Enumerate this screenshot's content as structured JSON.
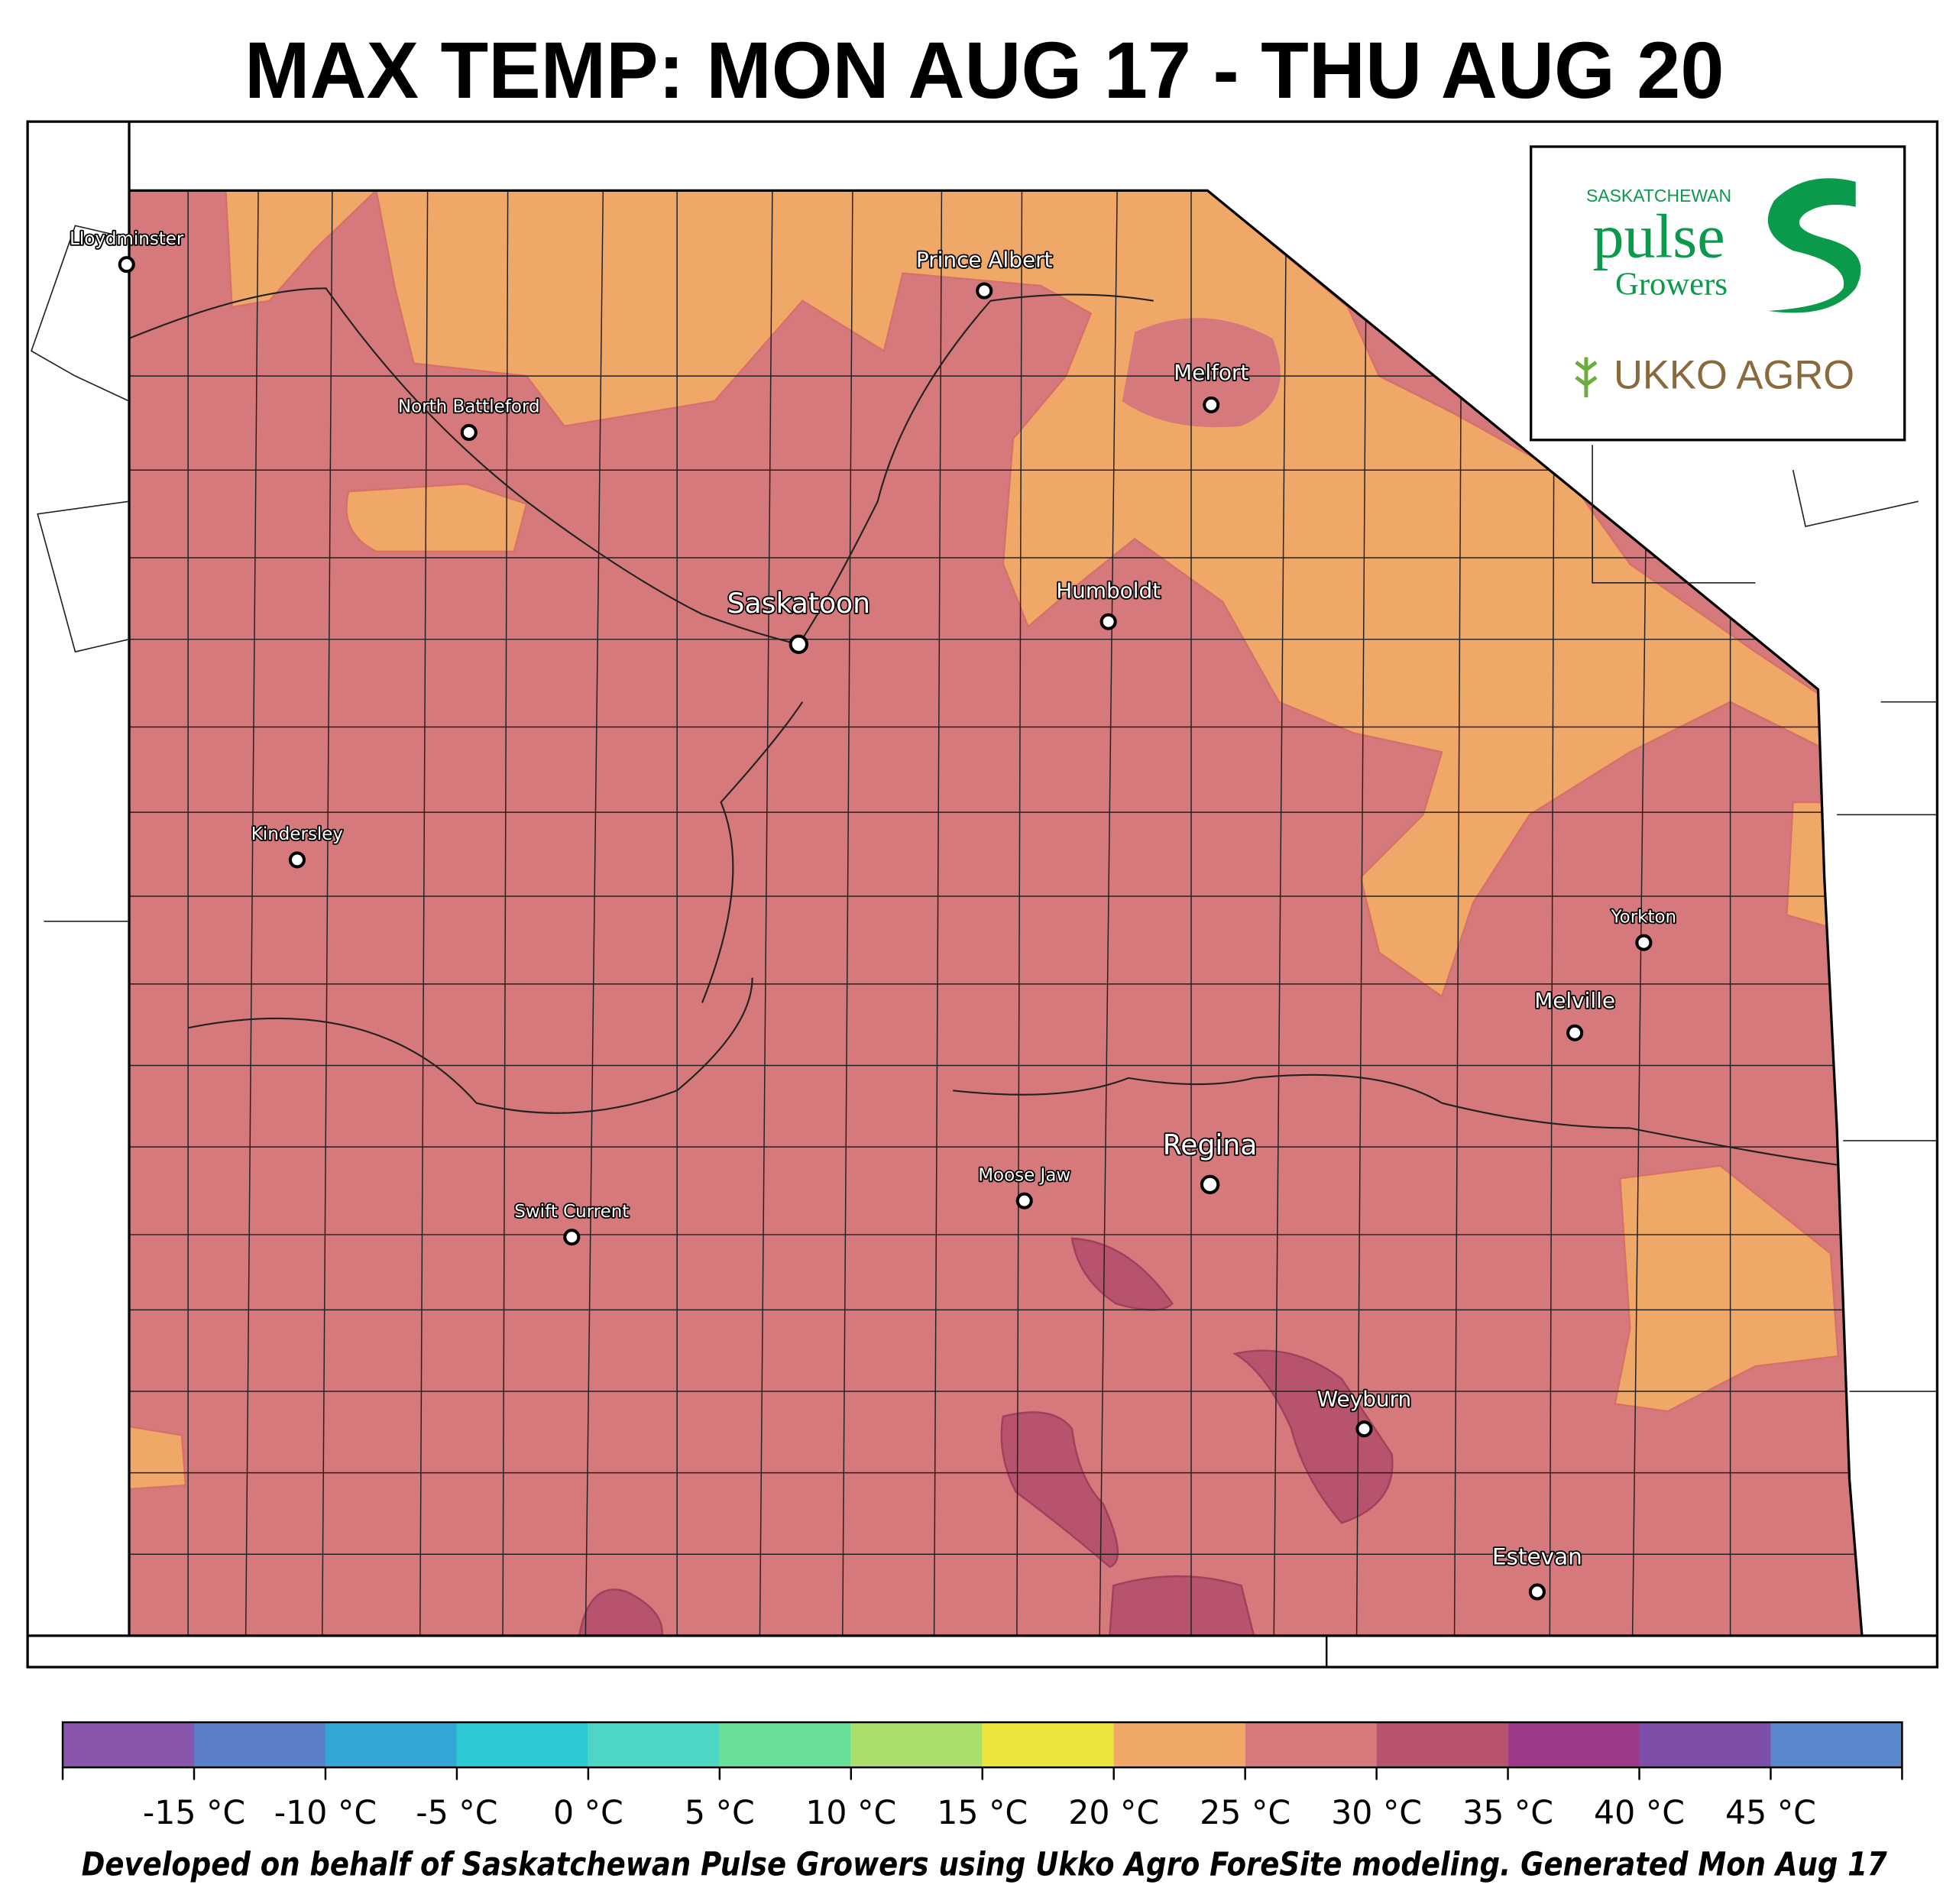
{
  "title": "MAX TEMP: MON AUG 17 - THU AUG 20",
  "logo": {
    "org_top": "SASKATCHEWAN",
    "org_main": "pulse",
    "org_bottom": "Growers",
    "partner": "UKKO AGRO"
  },
  "cities": [
    {
      "name": "Lloydminster"
    },
    {
      "name": "Prince Albert"
    },
    {
      "name": "Melfort"
    },
    {
      "name": "North Battleford"
    },
    {
      "name": "Saskatoon"
    },
    {
      "name": "Humboldt"
    },
    {
      "name": "Kindersley"
    },
    {
      "name": "Yorkton"
    },
    {
      "name": "Melville"
    },
    {
      "name": "Regina"
    },
    {
      "name": "Moose Jaw"
    },
    {
      "name": "Swift Current"
    },
    {
      "name": "Weyburn"
    },
    {
      "name": "Estevan"
    }
  ],
  "colorbar": {
    "bins": [
      -20,
      -15,
      -10,
      -5,
      0,
      5,
      10,
      15,
      20,
      25,
      30,
      35,
      40,
      45,
      50
    ],
    "colors": [
      "#8a55ad",
      "#5a7fc8",
      "#34a6d6",
      "#2dc9d2",
      "#4ed6c4",
      "#68e09a",
      "#aade6c",
      "#ece43a",
      "#f0a868",
      "#d5797d",
      "#b7536c",
      "#9d3a8a",
      "#7d4fa8",
      "#5a86cc"
    ],
    "ticks": [
      {
        "value": -15,
        "label": "-15 °C"
      },
      {
        "value": -10,
        "label": "-10 °C"
      },
      {
        "value": -5,
        "label": "-5 °C"
      },
      {
        "value": 0,
        "label": "0 °C"
      },
      {
        "value": 5,
        "label": "5 °C"
      },
      {
        "value": 10,
        "label": "10 °C"
      },
      {
        "value": 15,
        "label": "15 °C"
      },
      {
        "value": 20,
        "label": "20 °C"
      },
      {
        "value": 25,
        "label": "25 °C"
      },
      {
        "value": 30,
        "label": "30 °C"
      },
      {
        "value": 35,
        "label": "35 °C"
      },
      {
        "value": 40,
        "label": "40 °C"
      },
      {
        "value": 45,
        "label": "45 °C"
      }
    ]
  },
  "footer": "Developed on behalf of Saskatchewan Pulse Growers using Ukko Agro ForeSite modeling. Generated Mon Aug 17"
}
